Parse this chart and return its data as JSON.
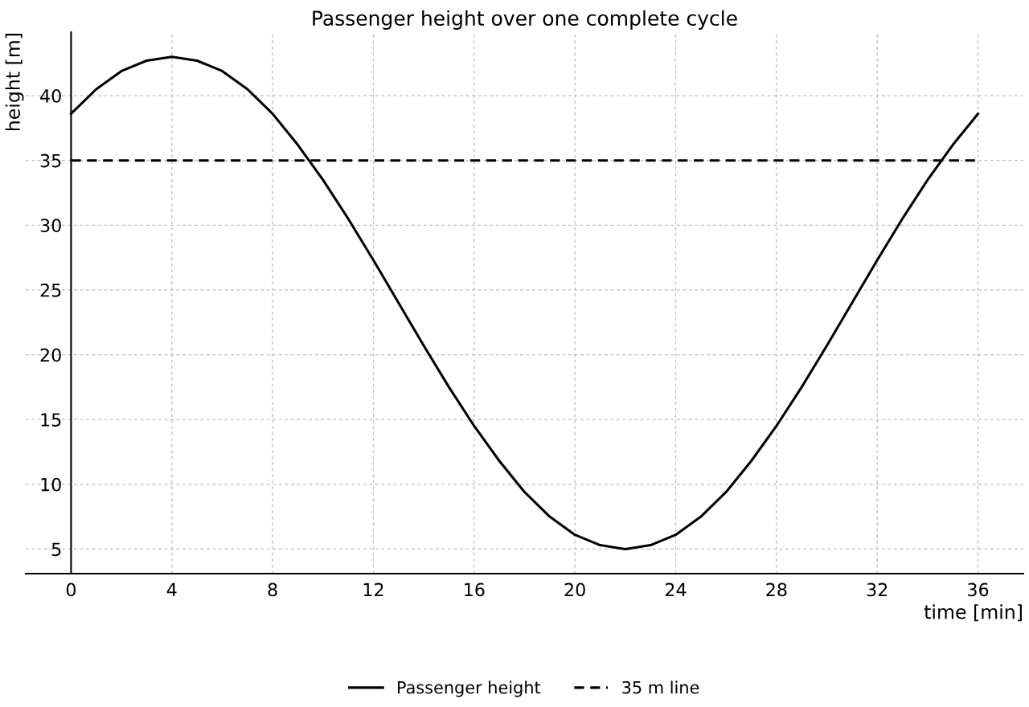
{
  "chart_data": {
    "type": "line",
    "title": "Passenger height over one complete cycle",
    "xlabel": "time [min]",
    "ylabel": "height [m]",
    "series": [
      {
        "name": "Passenger height",
        "color": "#000000",
        "line_style": "solid",
        "x": [
          0,
          1,
          2,
          3,
          4,
          5,
          6,
          7,
          8,
          9,
          10,
          11,
          12,
          13,
          14,
          15,
          16,
          17,
          18,
          19,
          20,
          21,
          22,
          23,
          24,
          25,
          26,
          27,
          28,
          29,
          30,
          31,
          32,
          33,
          34,
          35,
          36
        ],
        "values": [
          38.6,
          40.5,
          41.9,
          42.7,
          43,
          42.7,
          41.9,
          40.5,
          38.6,
          36.2,
          33.5,
          30.5,
          27.3,
          24,
          20.7,
          17.5,
          14.5,
          11.8,
          9.4,
          7.5,
          6.1,
          5.3,
          5,
          5.3,
          6.1,
          7.5,
          9.4,
          11.8,
          14.5,
          17.5,
          20.7,
          24,
          27.3,
          30.5,
          33.5,
          36.2,
          38.6
        ]
      },
      {
        "name": "35 m line",
        "color": "#000000",
        "line_style": "dashed",
        "x": [
          0,
          36
        ],
        "values": [
          35,
          35
        ]
      }
    ],
    "xlim": [
      -1.8,
      37.8
    ],
    "ylim": [
      3.1,
      44.9
    ],
    "xticks": [
      0,
      4,
      8,
      12,
      16,
      20,
      24,
      28,
      32,
      36
    ],
    "yticks": [
      5,
      10,
      15,
      20,
      25,
      30,
      35,
      40
    ],
    "grid": true,
    "legend": "bottom",
    "marker": "none"
  }
}
